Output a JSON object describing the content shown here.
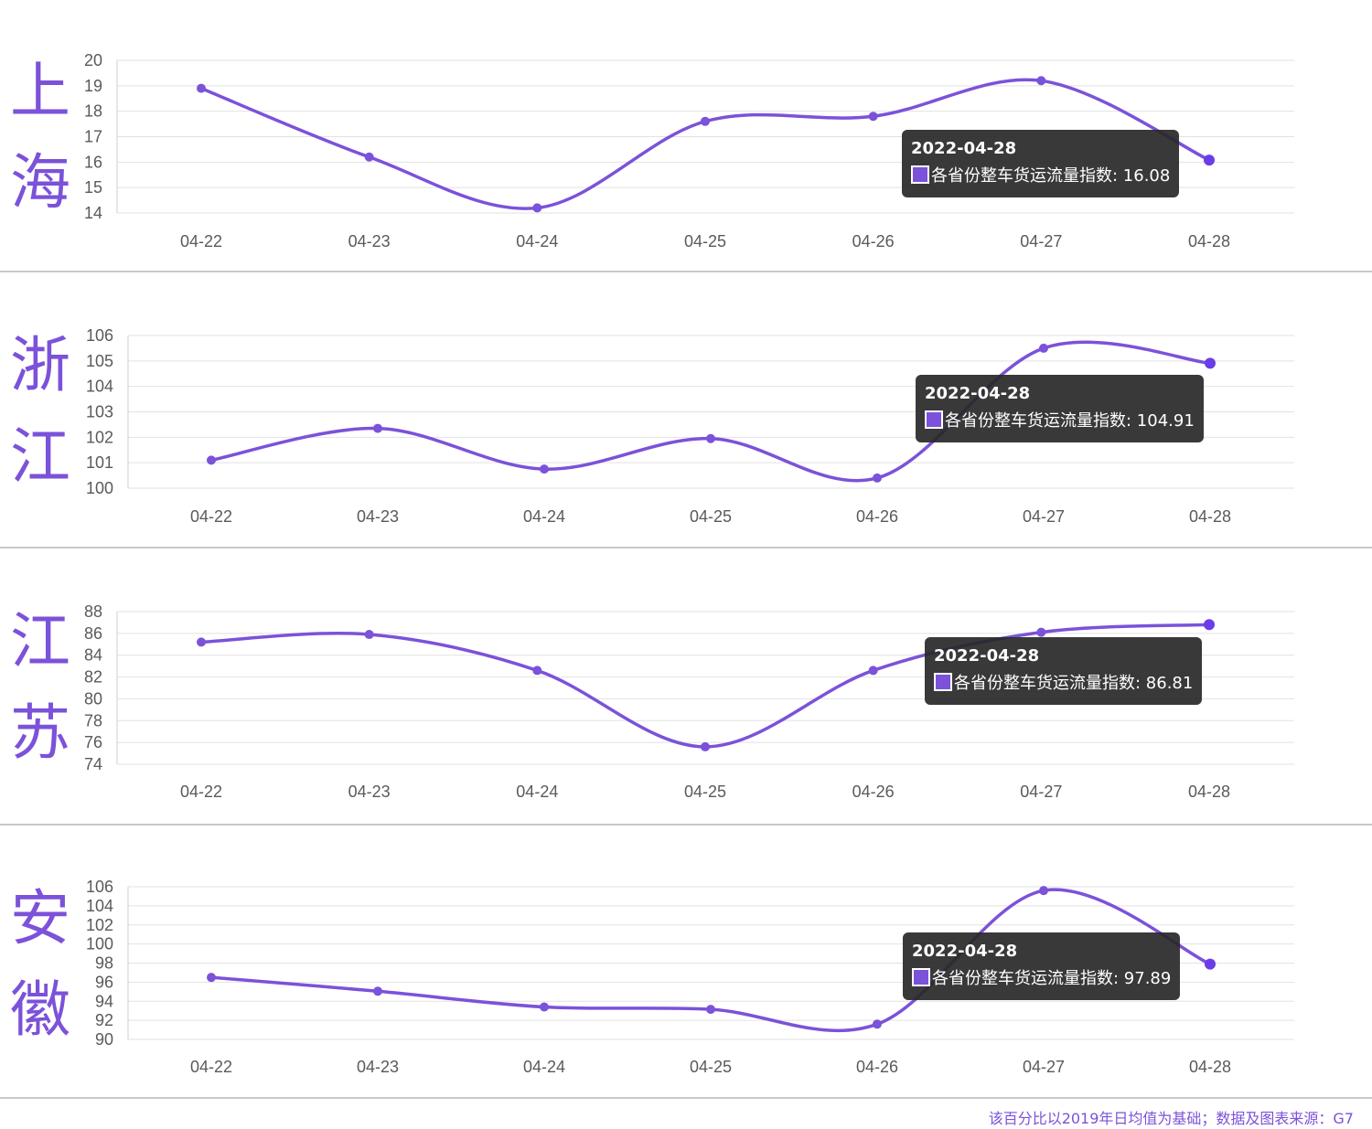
{
  "colors": {
    "accent": "#7b52d9",
    "tooltip_bg": "#2b2b2b",
    "grid": "#e2e2e2"
  },
  "footer": "该百分比以2019年日均值为基础；数据及图表来源：G7",
  "chart_data": [
    {
      "type": "line",
      "province": "上海",
      "province_chars": [
        "上",
        "海"
      ],
      "categories": [
        "04-22",
        "04-23",
        "04-24",
        "04-25",
        "04-26",
        "04-27",
        "04-28"
      ],
      "series": [
        {
          "name": "各省份整车货运流量指数",
          "values": [
            18.9,
            16.2,
            14.2,
            17.6,
            17.8,
            19.2,
            16.08
          ]
        }
      ],
      "ylim": [
        14,
        20
      ],
      "yticks": [
        20,
        19,
        18,
        17,
        16,
        15,
        14
      ],
      "grid": true,
      "tooltip": {
        "date": "2022-04-28",
        "text": "各省份整车货运流量指数: 16.08"
      }
    },
    {
      "type": "line",
      "province": "浙江",
      "province_chars": [
        "浙",
        "江"
      ],
      "categories": [
        "04-22",
        "04-23",
        "04-24",
        "04-25",
        "04-26",
        "04-27",
        "04-28"
      ],
      "series": [
        {
          "name": "各省份整车货运流量指数",
          "values": [
            101.1,
            102.35,
            100.75,
            101.95,
            100.4,
            105.5,
            104.91
          ]
        }
      ],
      "ylim": [
        100,
        106
      ],
      "yticks": [
        106,
        105,
        104,
        103,
        102,
        101,
        100
      ],
      "grid": true,
      "tooltip": {
        "date": "2022-04-28",
        "text": "各省份整车货运流量指数: 104.91"
      }
    },
    {
      "type": "line",
      "province": "江苏",
      "province_chars": [
        "江",
        "苏"
      ],
      "categories": [
        "04-22",
        "04-23",
        "04-24",
        "04-25",
        "04-26",
        "04-27",
        "04-28"
      ],
      "series": [
        {
          "name": "各省份整车货运流量指数",
          "values": [
            85.2,
            85.9,
            82.6,
            75.6,
            82.6,
            86.1,
            86.81
          ]
        }
      ],
      "ylim": [
        74,
        88
      ],
      "yticks": [
        88,
        86,
        84,
        82,
        80,
        78,
        76,
        74
      ],
      "grid": true,
      "tooltip": {
        "date": "2022-04-28",
        "text": "各省份整车货运流量指数: 86.81"
      }
    },
    {
      "type": "line",
      "province": "安徽",
      "province_chars": [
        "安",
        "徽"
      ],
      "categories": [
        "04-22",
        "04-23",
        "04-24",
        "04-25",
        "04-26",
        "04-27",
        "04-28"
      ],
      "series": [
        {
          "name": "各省份整车货运流量指数",
          "values": [
            96.5,
            95.05,
            93.4,
            93.15,
            91.6,
            105.6,
            97.89
          ]
        }
      ],
      "ylim": [
        90,
        106
      ],
      "yticks": [
        106,
        104,
        102,
        100,
        98,
        96,
        94,
        92,
        90
      ],
      "grid": true,
      "tooltip": {
        "date": "2022-04-28",
        "text": "各省份整车货运流量指数: 97.89"
      }
    }
  ]
}
